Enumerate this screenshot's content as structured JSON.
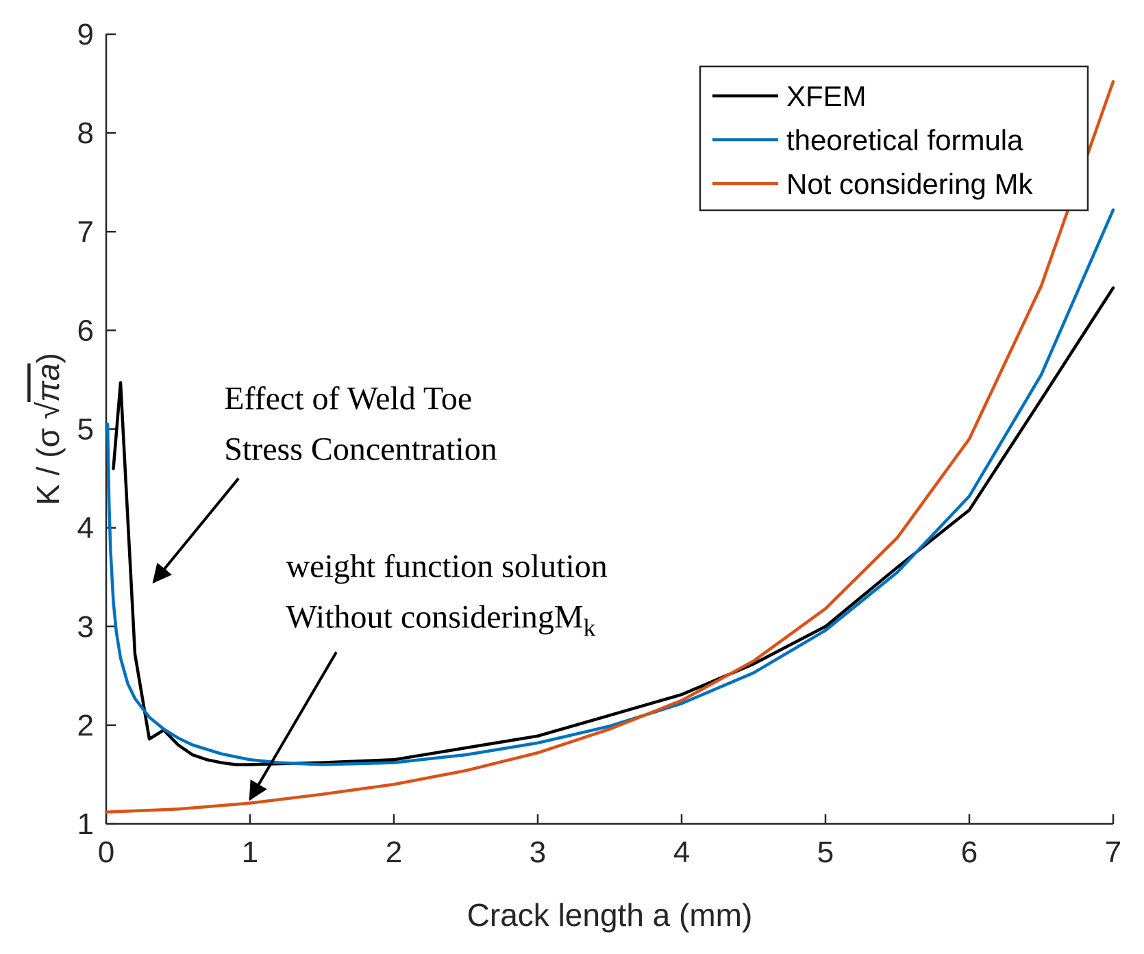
{
  "chart_data": {
    "type": "line",
    "title": "",
    "xlabel": "Crack length a (mm)",
    "ylabel_prefix": "K / (σ ",
    "ylabel_radical": "√",
    "ylabel_radicand": "πa",
    "ylabel_suffix": ")",
    "xlim": [
      0,
      7
    ],
    "ylim": [
      1,
      9
    ],
    "xticks": [
      0,
      1,
      2,
      3,
      4,
      5,
      6,
      7
    ],
    "yticks": [
      1,
      2,
      3,
      4,
      5,
      6,
      7,
      8,
      9
    ],
    "grid": false,
    "legend_position": "top-right",
    "series": [
      {
        "name": "XFEM",
        "color": "#000000",
        "x": [
          0.05,
          0.1,
          0.2,
          0.3,
          0.4,
          0.5,
          0.6,
          0.7,
          0.8,
          0.9,
          1.0,
          1.2,
          1.5,
          2.0,
          2.5,
          3.0,
          3.5,
          4.0,
          4.5,
          5.0,
          5.5,
          6.0,
          6.5,
          7.0
        ],
        "y": [
          4.6,
          5.47,
          2.72,
          1.86,
          1.95,
          1.8,
          1.7,
          1.65,
          1.62,
          1.6,
          1.6,
          1.61,
          1.62,
          1.65,
          1.77,
          1.89,
          2.1,
          2.31,
          2.62,
          3.0,
          3.6,
          4.18,
          5.3,
          6.43
        ]
      },
      {
        "name": "theoretical formula",
        "color": "#0072BD",
        "x": [
          0.01,
          0.02,
          0.03,
          0.05,
          0.07,
          0.1,
          0.15,
          0.2,
          0.3,
          0.4,
          0.5,
          0.6,
          0.8,
          1.0,
          1.2,
          1.5,
          2.0,
          2.5,
          3.0,
          3.5,
          4.0,
          4.5,
          5.0,
          5.5,
          6.0,
          6.5,
          7.0
        ],
        "y": [
          5.05,
          4.25,
          3.78,
          3.25,
          2.95,
          2.68,
          2.42,
          2.27,
          2.08,
          1.96,
          1.87,
          1.8,
          1.71,
          1.65,
          1.62,
          1.6,
          1.62,
          1.7,
          1.82,
          1.99,
          2.22,
          2.53,
          2.96,
          3.55,
          4.32,
          5.55,
          7.22
        ]
      },
      {
        "name": "Not considering Mk",
        "color": "#D95319",
        "x": [
          0.0,
          0.5,
          1.0,
          1.5,
          2.0,
          2.5,
          3.0,
          3.5,
          4.0,
          4.5,
          5.0,
          5.5,
          6.0,
          6.5,
          7.0
        ],
        "y": [
          1.12,
          1.15,
          1.21,
          1.3,
          1.4,
          1.54,
          1.72,
          1.96,
          2.25,
          2.65,
          3.18,
          3.9,
          4.9,
          6.45,
          8.52
        ]
      }
    ],
    "annotations": [
      {
        "lines": [
          "Effect of Weld Toe",
          "Stress Concentration"
        ],
        "text_at": [
          0.82,
          5.2
        ],
        "arrow_from": [
          0.92,
          4.5
        ],
        "arrow_to": [
          0.33,
          3.45
        ]
      },
      {
        "lines": [
          "weight function solution",
          "Without considering"
        ],
        "symbol_base": "M",
        "symbol_sub": "k",
        "text_at": [
          1.25,
          3.5
        ],
        "arrow_from": [
          1.6,
          2.74
        ],
        "arrow_to": [
          1.0,
          1.25
        ]
      }
    ]
  }
}
